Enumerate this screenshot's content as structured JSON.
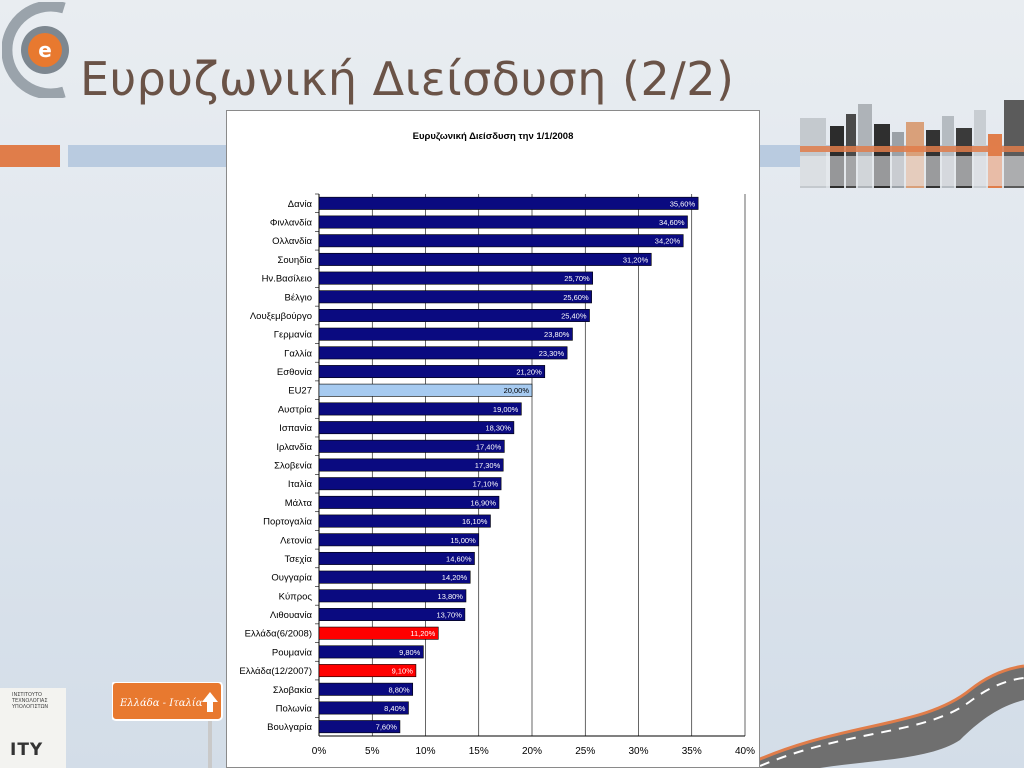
{
  "slide": {
    "title": "Ευρυζωνική Διείσδυση (2/2)",
    "sign_text": "Ελλάδα - Ιταλία",
    "institute_lines": "ΙΝΣΤΙΤΟΥΤΟ\nΤΕΧΝΟΛΟΓΙΑΣ\nΥΠΟΛΟΓΙΣΤΩΝ",
    "institute_acronym": "ITY",
    "colors": {
      "title": "#6a5347",
      "accent_orange": "#e07d4a",
      "accent_blue": "#b9cbe0"
    }
  },
  "chart_data": {
    "type": "bar",
    "orientation": "horizontal",
    "title": "Ευρυζωνική Διείσδυση την 1/1/2008",
    "xlabel": "",
    "ylabel": "",
    "xlim": [
      0,
      40
    ],
    "x_ticks": [
      "0%",
      "5%",
      "10%",
      "15%",
      "20%",
      "25%",
      "30%",
      "35%",
      "40%"
    ],
    "grid": "vertical",
    "legend": "none",
    "colors": {
      "default": "#0a0a80",
      "eu27": "#a6caf0",
      "greece": "#ff0000"
    },
    "categories": [
      "Δανία",
      "Φινλανδία",
      "Ολλανδία",
      "Σουηδία",
      "Ην.Βασίλειο",
      "Βέλγιο",
      "Λουξεμβούργο",
      "Γερμανία",
      "Γαλλία",
      "Εσθονία",
      "EU27",
      "Αυστρία",
      "Ισπανία",
      "Ιρλανδία",
      "Σλοβενία",
      "Ιταλία",
      "Μάλτα",
      "Πορτογαλία",
      "Λετονία",
      "Τσεχία",
      "Ουγγαρία",
      "Κύπρος",
      "Λιθουανία",
      "Ελλάδα(6/2008)",
      "Ρουμανία",
      "Ελλάδα(12/2007)",
      "Σλοβακία",
      "Πολωνία",
      "Βουλγαρία"
    ],
    "values": [
      35.6,
      34.6,
      34.2,
      31.2,
      25.7,
      25.6,
      25.4,
      23.8,
      23.3,
      21.2,
      20.0,
      19.0,
      18.3,
      17.4,
      17.3,
      17.1,
      16.9,
      16.1,
      15.0,
      14.6,
      14.2,
      13.8,
      13.7,
      11.2,
      9.8,
      9.1,
      8.8,
      8.4,
      7.6
    ],
    "labels": [
      "35,60%",
      "34,60%",
      "34,20%",
      "31,20%",
      "25,70%",
      "25,60%",
      "25,40%",
      "23,80%",
      "23,30%",
      "21,20%",
      "20,00%",
      "19,00%",
      "18,30%",
      "17,40%",
      "17,30%",
      "17,10%",
      "16,90%",
      "16,10%",
      "15,00%",
      "14,60%",
      "14,20%",
      "13,80%",
      "13,70%",
      "11,20%",
      "9,80%",
      "9,10%",
      "8,80%",
      "8,40%",
      "7,60%"
    ],
    "highlight": [
      "default",
      "default",
      "default",
      "default",
      "default",
      "default",
      "default",
      "default",
      "default",
      "default",
      "eu27",
      "default",
      "default",
      "default",
      "default",
      "default",
      "default",
      "default",
      "default",
      "default",
      "default",
      "default",
      "default",
      "greece",
      "default",
      "greece",
      "default",
      "default",
      "default"
    ]
  }
}
